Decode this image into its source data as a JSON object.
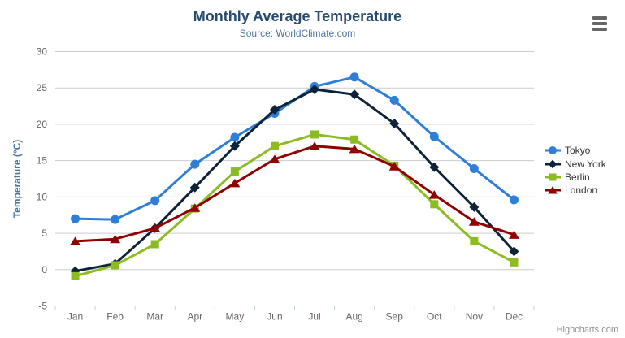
{
  "header": {
    "title": "Monthly Average Temperature",
    "subtitle": "Source: WorldClimate.com"
  },
  "credits": "Highcharts.com",
  "chart_data": {
    "type": "line",
    "title": "Monthly Average Temperature",
    "subtitle": "Source: WorldClimate.com",
    "categories": [
      "Jan",
      "Feb",
      "Mar",
      "Apr",
      "May",
      "Jun",
      "Jul",
      "Aug",
      "Sep",
      "Oct",
      "Nov",
      "Dec"
    ],
    "series": [
      {
        "name": "Tokyo",
        "color": "#2f7ed8",
        "marker": "circle",
        "values": [
          7.0,
          6.9,
          9.5,
          14.5,
          18.2,
          21.5,
          25.2,
          26.5,
          23.3,
          18.3,
          13.9,
          9.6
        ]
      },
      {
        "name": "New York",
        "color": "#0d233a",
        "marker": "diamond",
        "values": [
          -0.2,
          0.8,
          5.7,
          11.3,
          17.0,
          22.0,
          24.8,
          24.1,
          20.1,
          14.1,
          8.6,
          2.5
        ]
      },
      {
        "name": "Berlin",
        "color": "#8bbc21",
        "marker": "square",
        "values": [
          -0.9,
          0.6,
          3.5,
          8.4,
          13.5,
          17.0,
          18.6,
          17.9,
          14.3,
          9.0,
          3.9,
          1.0
        ]
      },
      {
        "name": "London",
        "color": "#910000",
        "marker": "triangle",
        "values": [
          3.9,
          4.2,
          5.7,
          8.5,
          11.9,
          15.2,
          17.0,
          16.6,
          14.2,
          10.3,
          6.6,
          4.8
        ]
      }
    ],
    "xlabel": "",
    "ylabel": "Temperature (°C)",
    "ylim": [
      -5,
      30
    ],
    "ytick_step": 5,
    "grid": true,
    "legend_position": "right",
    "colors": {
      "grid": "#cccccc",
      "axis_line": "#c0d0e0",
      "tick_label": "#666666",
      "axis_title": "#4d759e",
      "title": "#274b6d",
      "subtitle": "#4d759e",
      "legend_text": "#333333",
      "credits": "#909090"
    }
  }
}
